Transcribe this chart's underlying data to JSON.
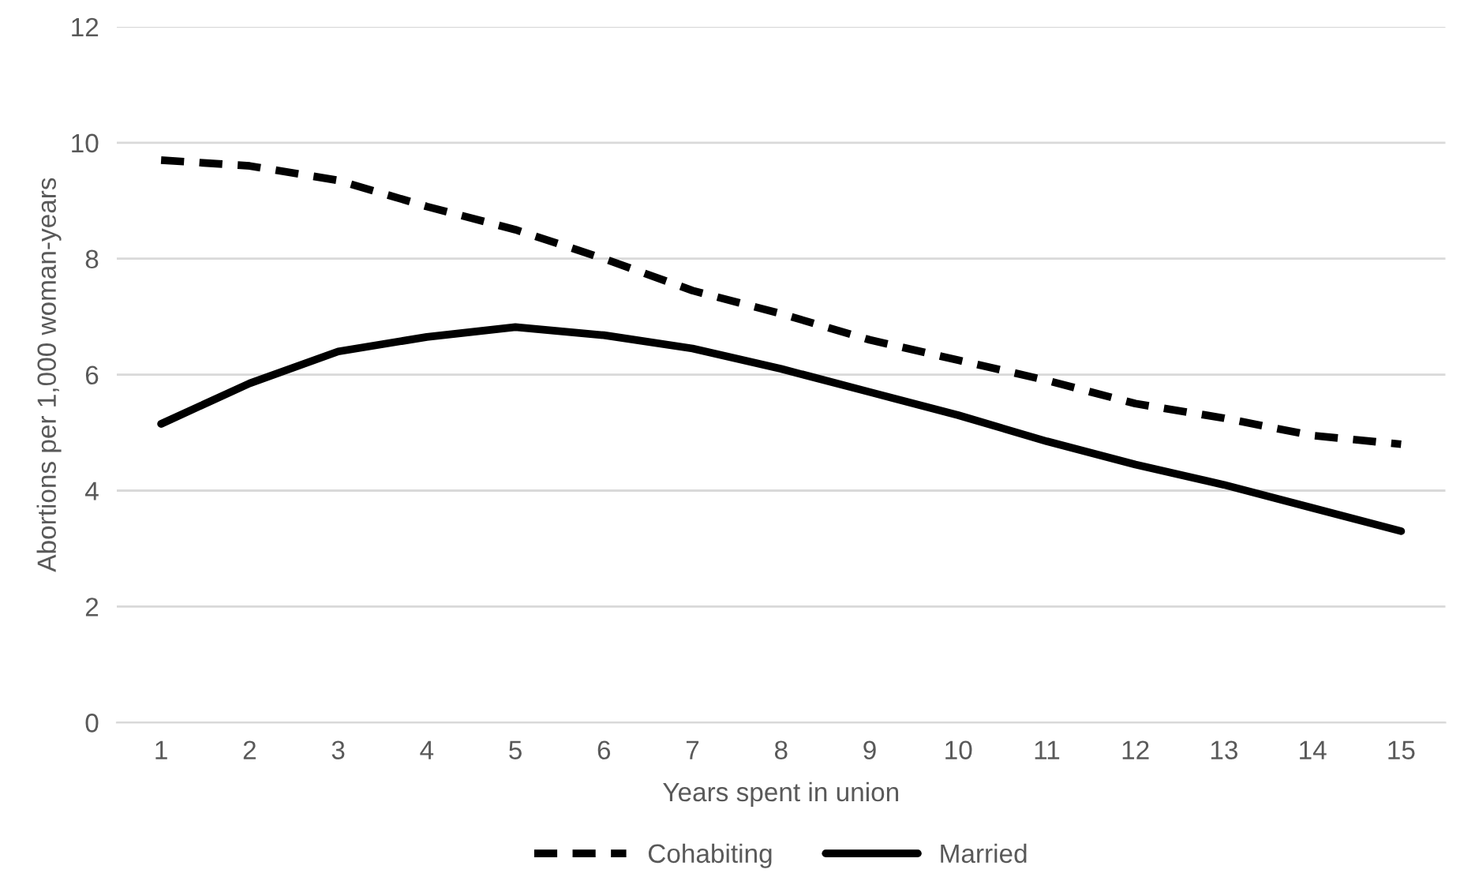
{
  "chart_data": {
    "type": "line",
    "xlabel": "Years spent in union",
    "ylabel": "Abortions per 1,000 woman-years",
    "categories": [
      "1",
      "2",
      "3",
      "4",
      "5",
      "6",
      "7",
      "8",
      "9",
      "10",
      "11",
      "12",
      "13",
      "14",
      "15"
    ],
    "series": [
      {
        "name": "Cohabiting",
        "color": "#000000",
        "line_style": "dashed",
        "values": [
          9.7,
          9.6,
          9.35,
          8.9,
          8.5,
          8.0,
          7.45,
          7.05,
          6.6,
          6.25,
          5.9,
          5.5,
          5.25,
          4.95,
          4.8
        ]
      },
      {
        "name": "Married",
        "color": "#000000",
        "line_style": "solid",
        "values": [
          5.15,
          5.85,
          6.4,
          6.65,
          6.82,
          6.68,
          6.45,
          6.1,
          5.7,
          5.3,
          4.85,
          4.45,
          4.1,
          3.7,
          3.3
        ]
      }
    ],
    "ylim": [
      0,
      12
    ],
    "yticks": [
      0,
      2,
      4,
      6,
      8,
      10,
      12
    ],
    "grid": "y",
    "legend": "bottom",
    "marker": "none"
  }
}
